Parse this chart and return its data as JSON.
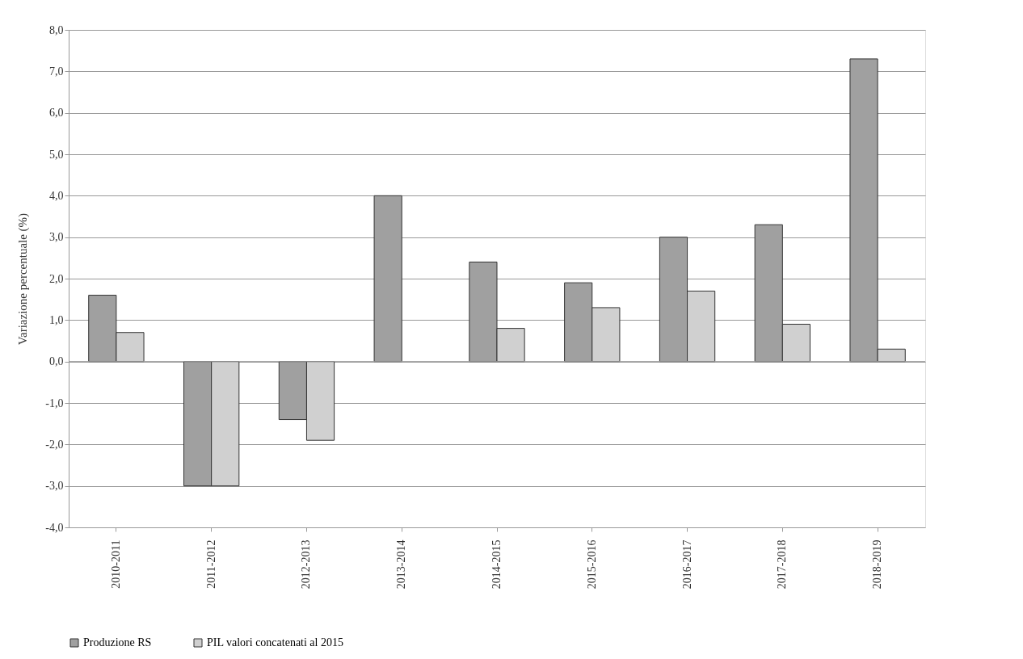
{
  "chart_data": {
    "type": "bar",
    "ylabel": "Variazione  percentuale (%)",
    "categories": [
      "2010-2011",
      "2011-2012",
      "2012-2013",
      "2013-2014",
      "2014-2015",
      "2015-2016",
      "2016-2017",
      "2017-2018",
      "2018-2019"
    ],
    "series": [
      {
        "name": "Produzione RS",
        "color": "#a0a0a0",
        "values": [
          1.6,
          -3.0,
          -1.4,
          4.0,
          2.4,
          1.9,
          3.0,
          3.3,
          7.3
        ]
      },
      {
        "name": "PIL  valori concatenati al 2015",
        "color": "#d0d0d0",
        "values": [
          0.7,
          -3.0,
          -1.9,
          null,
          0.8,
          1.3,
          1.7,
          0.9,
          0.3
        ]
      }
    ],
    "ylim": [
      -4.0,
      8.0
    ],
    "yticks": [
      {
        "value": -4,
        "label": "-4,0"
      },
      {
        "value": -3,
        "label": "-3,0"
      },
      {
        "value": -2,
        "label": "-2,0"
      },
      {
        "value": -1,
        "label": "-1,0"
      },
      {
        "value": 0,
        "label": "0,0"
      },
      {
        "value": 1,
        "label": "1,0"
      },
      {
        "value": 2,
        "label": "2,0"
      },
      {
        "value": 3,
        "label": "3,0"
      },
      {
        "value": 4,
        "label": "4,0"
      },
      {
        "value": 5,
        "label": "5,0"
      },
      {
        "value": 6,
        "label": "6,0"
      },
      {
        "value": 7,
        "label": "7,0"
      },
      {
        "value": 8,
        "label": "8,0"
      }
    ],
    "grid": "y",
    "legend": "bottom"
  }
}
